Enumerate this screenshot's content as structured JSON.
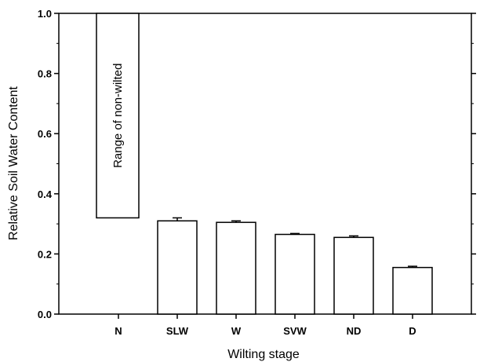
{
  "chart_data": {
    "type": "bar",
    "xlabel": "Wilting stage",
    "ylabel": "Relative Soil Water Content",
    "ylim": [
      0,
      1.0
    ],
    "yticks": [
      "0.0",
      "0.2",
      "0.4",
      "0.6",
      "0.8",
      "1.0"
    ],
    "categories": [
      "N",
      "SLW",
      "W",
      "SVW",
      "ND",
      "D"
    ],
    "values": [
      null,
      0.31,
      0.305,
      0.265,
      0.255,
      0.155
    ],
    "errors": [
      null,
      0.01,
      0.005,
      0.003,
      0.005,
      0.004
    ],
    "range_box": {
      "category": "N",
      "low": 0.32,
      "high": 1.0,
      "label": "Range of non-wilted"
    },
    "grid": false,
    "legend": "none"
  }
}
